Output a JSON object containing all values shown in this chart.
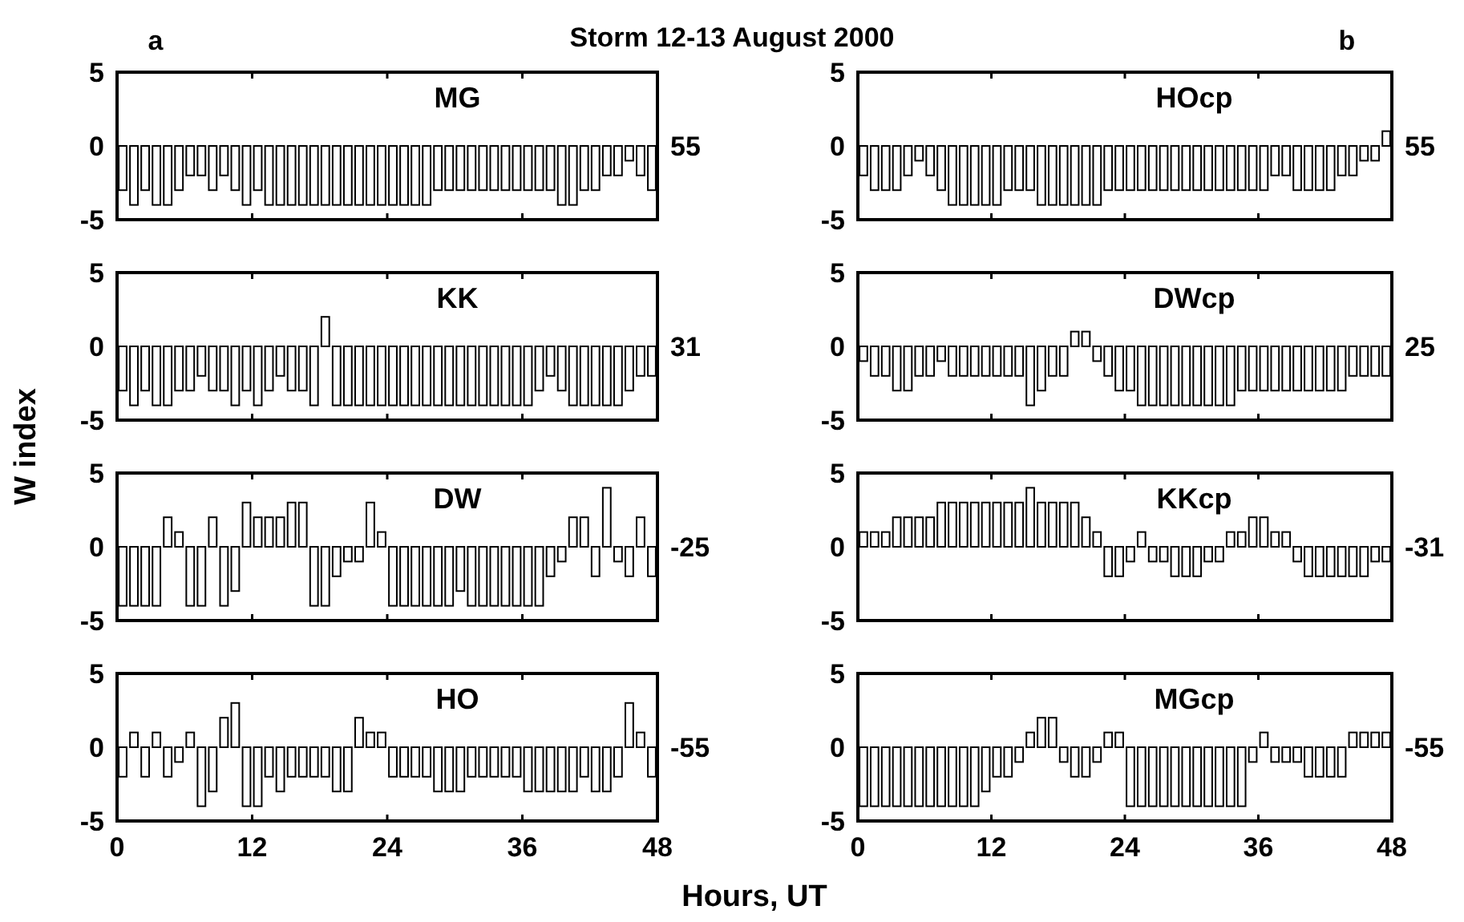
{
  "chart_data": [
    {
      "type": "bar",
      "title": "MG",
      "ylabel": "W index",
      "annotations": [
        "55",
        "a",
        "Storm 12-13 August 2000"
      ],
      "color": "#ffffff",
      "tick_labels": "y",
      "xlim": [
        0,
        48
      ],
      "xticks": [
        0,
        12,
        24,
        36,
        48
      ],
      "ylim": [
        -5,
        5
      ],
      "yticks": [
        -5,
        0,
        5
      ],
      "x": [
        0.5,
        1.5,
        2.5,
        3.5,
        4.5,
        5.5,
        6.5,
        7.5,
        8.5,
        9.5,
        10.5,
        11.5,
        12.5,
        13.5,
        14.5,
        15.5,
        16.5,
        17.5,
        18.5,
        19.5,
        20.5,
        21.5,
        22.5,
        23.5,
        24.5,
        25.5,
        26.5,
        27.5,
        28.5,
        29.5,
        30.5,
        31.5,
        32.5,
        33.5,
        34.5,
        35.5,
        36.5,
        37.5,
        38.5,
        39.5,
        40.5,
        41.5,
        42.5,
        43.5,
        44.5,
        45.5,
        46.5,
        47.5
      ],
      "values": [
        -3,
        -4,
        -3,
        -4,
        -4,
        -3,
        -2,
        -2,
        -3,
        -2,
        -3,
        -4,
        -3,
        -4,
        -4,
        -4,
        -4,
        -4,
        -4,
        -4,
        -4,
        -4,
        -4,
        -4,
        -4,
        -4,
        -4,
        -4,
        -3,
        -3,
        -3,
        -3,
        -3,
        -3,
        -3,
        -3,
        -3,
        -3,
        -3,
        -4,
        -4,
        -3,
        -3,
        -2,
        -2,
        -1,
        -2,
        -3
      ]
    },
    {
      "type": "bar",
      "title": "KK",
      "annotations": [
        "31"
      ],
      "color": "#ffffff",
      "tick_labels": "y",
      "xlim": [
        0,
        48
      ],
      "xticks": [
        0,
        12,
        24,
        36,
        48
      ],
      "ylim": [
        -5,
        5
      ],
      "yticks": [
        -5,
        0,
        5
      ],
      "x": [
        0.5,
        1.5,
        2.5,
        3.5,
        4.5,
        5.5,
        6.5,
        7.5,
        8.5,
        9.5,
        10.5,
        11.5,
        12.5,
        13.5,
        14.5,
        15.5,
        16.5,
        17.5,
        18.5,
        19.5,
        20.5,
        21.5,
        22.5,
        23.5,
        24.5,
        25.5,
        26.5,
        27.5,
        28.5,
        29.5,
        30.5,
        31.5,
        32.5,
        33.5,
        34.5,
        35.5,
        36.5,
        37.5,
        38.5,
        39.5,
        40.5,
        41.5,
        42.5,
        43.5,
        44.5,
        45.5,
        46.5,
        47.5
      ],
      "values": [
        -3,
        -4,
        -3,
        -4,
        -4,
        -3,
        -3,
        -2,
        -3,
        -3,
        -4,
        -3,
        -4,
        -3,
        -2,
        -3,
        -3,
        -4,
        2,
        -4,
        -4,
        -4,
        -4,
        -4,
        -4,
        -4,
        -4,
        -4,
        -4,
        -4,
        -4,
        -4,
        -4,
        -4,
        -4,
        -4,
        -4,
        -3,
        -2,
        -3,
        -4,
        -4,
        -4,
        -4,
        -4,
        -3,
        -2,
        -2
      ]
    },
    {
      "type": "bar",
      "title": "DW",
      "annotations": [
        "-25"
      ],
      "color": "#ffffff",
      "tick_labels": "y",
      "xlim": [
        0,
        48
      ],
      "xticks": [
        0,
        12,
        24,
        36,
        48
      ],
      "ylim": [
        -5,
        5
      ],
      "yticks": [
        -5,
        0,
        5
      ],
      "x": [
        0.5,
        1.5,
        2.5,
        3.5,
        4.5,
        5.5,
        6.5,
        7.5,
        8.5,
        9.5,
        10.5,
        11.5,
        12.5,
        13.5,
        14.5,
        15.5,
        16.5,
        17.5,
        18.5,
        19.5,
        20.5,
        21.5,
        22.5,
        23.5,
        24.5,
        25.5,
        26.5,
        27.5,
        28.5,
        29.5,
        30.5,
        31.5,
        32.5,
        33.5,
        34.5,
        35.5,
        36.5,
        37.5,
        38.5,
        39.5,
        40.5,
        41.5,
        42.5,
        43.5,
        44.5,
        45.5,
        46.5,
        47.5
      ],
      "values": [
        -4,
        -4,
        -4,
        -4,
        2,
        1,
        -4,
        -4,
        2,
        -4,
        -3,
        3,
        2,
        2,
        2,
        3,
        3,
        -4,
        -4,
        -2,
        -1,
        -1,
        3,
        1,
        -4,
        -4,
        -4,
        -4,
        -4,
        -4,
        -3,
        -4,
        -4,
        -4,
        -4,
        -4,
        -4,
        -4,
        -2,
        -1,
        2,
        2,
        -2,
        4,
        -1,
        -2,
        2,
        -2
      ]
    },
    {
      "type": "bar",
      "title": "HO",
      "xlabel": "Hours, UT",
      "annotations": [
        "-55"
      ],
      "color": "#ffffff",
      "xlim": [
        0,
        48
      ],
      "xticks": [
        0,
        12,
        24,
        36,
        48
      ],
      "ylim": [
        -5,
        5
      ],
      "yticks": [
        -5,
        0,
        5
      ],
      "x": [
        0.5,
        1.5,
        2.5,
        3.5,
        4.5,
        5.5,
        6.5,
        7.5,
        8.5,
        9.5,
        10.5,
        11.5,
        12.5,
        13.5,
        14.5,
        15.5,
        16.5,
        17.5,
        18.5,
        19.5,
        20.5,
        21.5,
        22.5,
        23.5,
        24.5,
        25.5,
        26.5,
        27.5,
        28.5,
        29.5,
        30.5,
        31.5,
        32.5,
        33.5,
        34.5,
        35.5,
        36.5,
        37.5,
        38.5,
        39.5,
        40.5,
        41.5,
        42.5,
        43.5,
        44.5,
        45.5,
        46.5,
        47.5
      ],
      "values": [
        -2,
        1,
        -2,
        1,
        -2,
        -1,
        1,
        -4,
        -3,
        2,
        3,
        -4,
        -4,
        -2,
        -3,
        -2,
        -2,
        -2,
        -2,
        -3,
        -3,
        2,
        1,
        1,
        -2,
        -2,
        -2,
        -2,
        -3,
        -3,
        -3,
        -2,
        -2,
        -2,
        -2,
        -2,
        -3,
        -3,
        -3,
        -3,
        -3,
        -2,
        -3,
        -3,
        -2,
        3,
        1,
        -2
      ]
    },
    {
      "type": "bar",
      "title": "HOcp",
      "annotations": [
        "55",
        "b"
      ],
      "color": "#ffffff",
      "tick_labels": "y",
      "xlim": [
        0,
        48
      ],
      "xticks": [
        0,
        12,
        24,
        36,
        48
      ],
      "ylim": [
        -5,
        5
      ],
      "yticks": [
        -5,
        0,
        5
      ],
      "x": [
        0.5,
        1.5,
        2.5,
        3.5,
        4.5,
        5.5,
        6.5,
        7.5,
        8.5,
        9.5,
        10.5,
        11.5,
        12.5,
        13.5,
        14.5,
        15.5,
        16.5,
        17.5,
        18.5,
        19.5,
        20.5,
        21.5,
        22.5,
        23.5,
        24.5,
        25.5,
        26.5,
        27.5,
        28.5,
        29.5,
        30.5,
        31.5,
        32.5,
        33.5,
        34.5,
        35.5,
        36.5,
        37.5,
        38.5,
        39.5,
        40.5,
        41.5,
        42.5,
        43.5,
        44.5,
        45.5,
        46.5,
        47.5
      ],
      "values": [
        -2,
        -3,
        -3,
        -3,
        -2,
        -1,
        -2,
        -3,
        -4,
        -4,
        -4,
        -4,
        -4,
        -3,
        -3,
        -3,
        -4,
        -4,
        -4,
        -4,
        -4,
        -4,
        -3,
        -3,
        -3,
        -3,
        -3,
        -3,
        -3,
        -3,
        -3,
        -3,
        -3,
        -3,
        -3,
        -3,
        -3,
        -2,
        -2,
        -3,
        -3,
        -3,
        -3,
        -2,
        -2,
        -1,
        -1,
        1
      ]
    },
    {
      "type": "bar",
      "title": "DWcp",
      "annotations": [
        "25"
      ],
      "color": "#ffffff",
      "tick_labels": "y",
      "xlim": [
        0,
        48
      ],
      "xticks": [
        0,
        12,
        24,
        36,
        48
      ],
      "ylim": [
        -5,
        5
      ],
      "yticks": [
        -5,
        0,
        5
      ],
      "x": [
        0.5,
        1.5,
        2.5,
        3.5,
        4.5,
        5.5,
        6.5,
        7.5,
        8.5,
        9.5,
        10.5,
        11.5,
        12.5,
        13.5,
        14.5,
        15.5,
        16.5,
        17.5,
        18.5,
        19.5,
        20.5,
        21.5,
        22.5,
        23.5,
        24.5,
        25.5,
        26.5,
        27.5,
        28.5,
        29.5,
        30.5,
        31.5,
        32.5,
        33.5,
        34.5,
        35.5,
        36.5,
        37.5,
        38.5,
        39.5,
        40.5,
        41.5,
        42.5,
        43.5,
        44.5,
        45.5,
        46.5,
        47.5
      ],
      "values": [
        -1,
        -2,
        -2,
        -3,
        -3,
        -2,
        -2,
        -1,
        -2,
        -2,
        -2,
        -2,
        -2,
        -2,
        -2,
        -4,
        -3,
        -2,
        -2,
        1,
        1,
        -1,
        -2,
        -3,
        -3,
        -4,
        -4,
        -4,
        -4,
        -4,
        -4,
        -4,
        -4,
        -4,
        -3,
        -3,
        -3,
        -3,
        -3,
        -3,
        -3,
        -3,
        -3,
        -3,
        -2,
        -2,
        -2,
        -2
      ]
    },
    {
      "type": "bar",
      "title": "KKcp",
      "annotations": [
        "-31"
      ],
      "color": "#ffffff",
      "tick_labels": "y",
      "xlim": [
        0,
        48
      ],
      "xticks": [
        0,
        12,
        24,
        36,
        48
      ],
      "ylim": [
        -5,
        5
      ],
      "yticks": [
        -5,
        0,
        5
      ],
      "x": [
        0.5,
        1.5,
        2.5,
        3.5,
        4.5,
        5.5,
        6.5,
        7.5,
        8.5,
        9.5,
        10.5,
        11.5,
        12.5,
        13.5,
        14.5,
        15.5,
        16.5,
        17.5,
        18.5,
        19.5,
        20.5,
        21.5,
        22.5,
        23.5,
        24.5,
        25.5,
        26.5,
        27.5,
        28.5,
        29.5,
        30.5,
        31.5,
        32.5,
        33.5,
        34.5,
        35.5,
        36.5,
        37.5,
        38.5,
        39.5,
        40.5,
        41.5,
        42.5,
        43.5,
        44.5,
        45.5,
        46.5,
        47.5
      ],
      "values": [
        1,
        1,
        1,
        2,
        2,
        2,
        2,
        3,
        3,
        3,
        3,
        3,
        3,
        3,
        3,
        4,
        3,
        3,
        3,
        3,
        2,
        1,
        -2,
        -2,
        -1,
        1,
        -1,
        -1,
        -2,
        -2,
        -2,
        -1,
        -1,
        1,
        1,
        2,
        2,
        1,
        1,
        -1,
        -2,
        -2,
        -2,
        -2,
        -2,
        -2,
        -1,
        -1
      ]
    },
    {
      "type": "bar",
      "title": "MGcp",
      "annotations": [
        "-55"
      ],
      "color": "#ffffff",
      "xlim": [
        0,
        48
      ],
      "xticks": [
        0,
        12,
        24,
        36,
        48
      ],
      "ylim": [
        -5,
        5
      ],
      "yticks": [
        -5,
        0,
        5
      ],
      "x": [
        0.5,
        1.5,
        2.5,
        3.5,
        4.5,
        5.5,
        6.5,
        7.5,
        8.5,
        9.5,
        10.5,
        11.5,
        12.5,
        13.5,
        14.5,
        15.5,
        16.5,
        17.5,
        18.5,
        19.5,
        20.5,
        21.5,
        22.5,
        23.5,
        24.5,
        25.5,
        26.5,
        27.5,
        28.5,
        29.5,
        30.5,
        31.5,
        32.5,
        33.5,
        34.5,
        35.5,
        36.5,
        37.5,
        38.5,
        39.5,
        40.5,
        41.5,
        42.5,
        43.5,
        44.5,
        45.5,
        46.5,
        47.5
      ],
      "values": [
        -4,
        -4,
        -4,
        -4,
        -4,
        -4,
        -4,
        -4,
        -4,
        -4,
        -4,
        -3,
        -2,
        -2,
        -1,
        1,
        2,
        2,
        -1,
        -2,
        -2,
        -1,
        1,
        1,
        -4,
        -4,
        -4,
        -4,
        -4,
        -4,
        -4,
        -4,
        -4,
        -4,
        -4,
        -1,
        1,
        -1,
        -1,
        -1,
        -2,
        -2,
        -2,
        -2,
        1,
        1,
        1,
        1
      ]
    }
  ]
}
